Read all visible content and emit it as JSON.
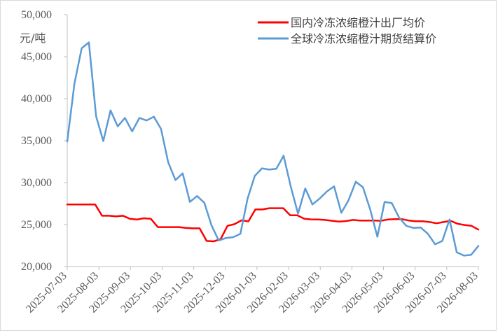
{
  "chart_data": {
    "type": "line",
    "unit_label": "元/吨",
    "ylim": [
      20000,
      50000
    ],
    "ytick_labels": [
      "20,000",
      "25,000",
      "30,000",
      "35,000",
      "40,000",
      "45,000",
      "50,000"
    ],
    "ytick_values": [
      20000,
      25000,
      30000,
      35000,
      40000,
      45000,
      50000
    ],
    "xtick_labels": [
      "2025-07-03",
      "2025-08-03",
      "2025-09-03",
      "2025-10-03",
      "2025-11-03",
      "2025-12-03",
      "2026-01-03",
      "2026-02-03",
      "2026-03-03",
      "2026-04-03",
      "2026-05-03",
      "2026-06-03",
      "2026-07-03",
      "2026-08-03"
    ],
    "legend_position": "top-right",
    "grid": false,
    "series": [
      {
        "name": "国内冷冻浓缩橙汁出厂均价",
        "color": "#ff0000",
        "values": [
          27400,
          27400,
          27400,
          27400,
          27400,
          26050,
          26050,
          25980,
          26050,
          25680,
          25600,
          25750,
          25680,
          24700,
          24700,
          24700,
          24700,
          24600,
          24550,
          24550,
          23050,
          23000,
          23250,
          24850,
          25050,
          25500,
          25380,
          26800,
          26800,
          26950,
          26950,
          26950,
          26100,
          26100,
          25700,
          25620,
          25600,
          25550,
          25450,
          25350,
          25420,
          25550,
          25480,
          25480,
          25480,
          25450,
          25600,
          25650,
          25650,
          25480,
          25400,
          25400,
          25300,
          25150,
          25300,
          25450,
          25100,
          24950,
          24850,
          24400
        ]
      },
      {
        "name": "全球冷冻浓缩橙汁期货结算价",
        "color": "#5b9bd5",
        "values": [
          34900,
          41800,
          46000,
          46700,
          37900,
          34950,
          38600,
          36700,
          37700,
          36100,
          37700,
          37400,
          37850,
          36400,
          32400,
          30300,
          31100,
          27700,
          28400,
          27600,
          24900,
          23100,
          23400,
          23500,
          23900,
          28100,
          30800,
          31700,
          31550,
          31650,
          33200,
          29500,
          26300,
          29300,
          27400,
          28100,
          28950,
          29550,
          26400,
          27900,
          30100,
          29450,
          26800,
          23550,
          27700,
          27550,
          25850,
          24850,
          24600,
          24650,
          23900,
          22650,
          23050,
          25600,
          21700,
          21300,
          21400,
          22450
        ]
      }
    ]
  }
}
